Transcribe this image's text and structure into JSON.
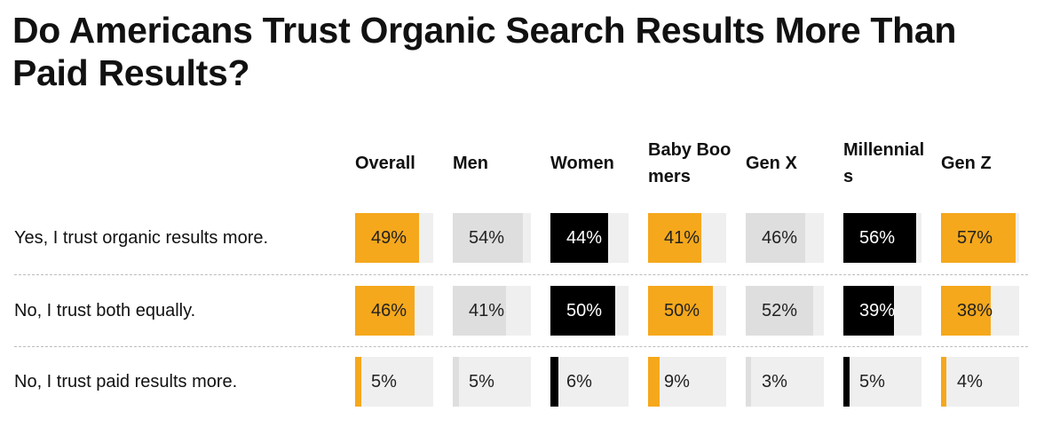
{
  "title": "Do Americans Trust Organic Search Results More Than Paid Results?",
  "colors": {
    "orange": "#F5A81C",
    "gray_fill": "#dedede",
    "black": "#000000",
    "track": "#efefef"
  },
  "chart_data": {
    "type": "table",
    "title": "Do Americans Trust Organic Search Results More Than Paid Results?",
    "columns": [
      {
        "label": "Overall",
        "color": "#F5A81C"
      },
      {
        "label": "Men",
        "color": "#dedede"
      },
      {
        "label": "Women",
        "color": "#000000"
      },
      {
        "label": "Baby Boomers",
        "color": "#F5A81C"
      },
      {
        "label": "Gen X",
        "color": "#dedede"
      },
      {
        "label": "Millennials",
        "color": "#000000"
      },
      {
        "label": "Gen Z",
        "color": "#F5A81C"
      }
    ],
    "rows": [
      {
        "label": "Yes, I trust organic results more.",
        "values": [
          49,
          54,
          44,
          41,
          46,
          56,
          57
        ]
      },
      {
        "label": "No, I trust both equally.",
        "values": [
          46,
          41,
          50,
          50,
          52,
          39,
          38
        ]
      },
      {
        "label": "No, I trust paid results more.",
        "values": [
          5,
          5,
          6,
          9,
          3,
          5,
          4
        ]
      }
    ],
    "value_suffix": "%",
    "scale_max": 60
  }
}
